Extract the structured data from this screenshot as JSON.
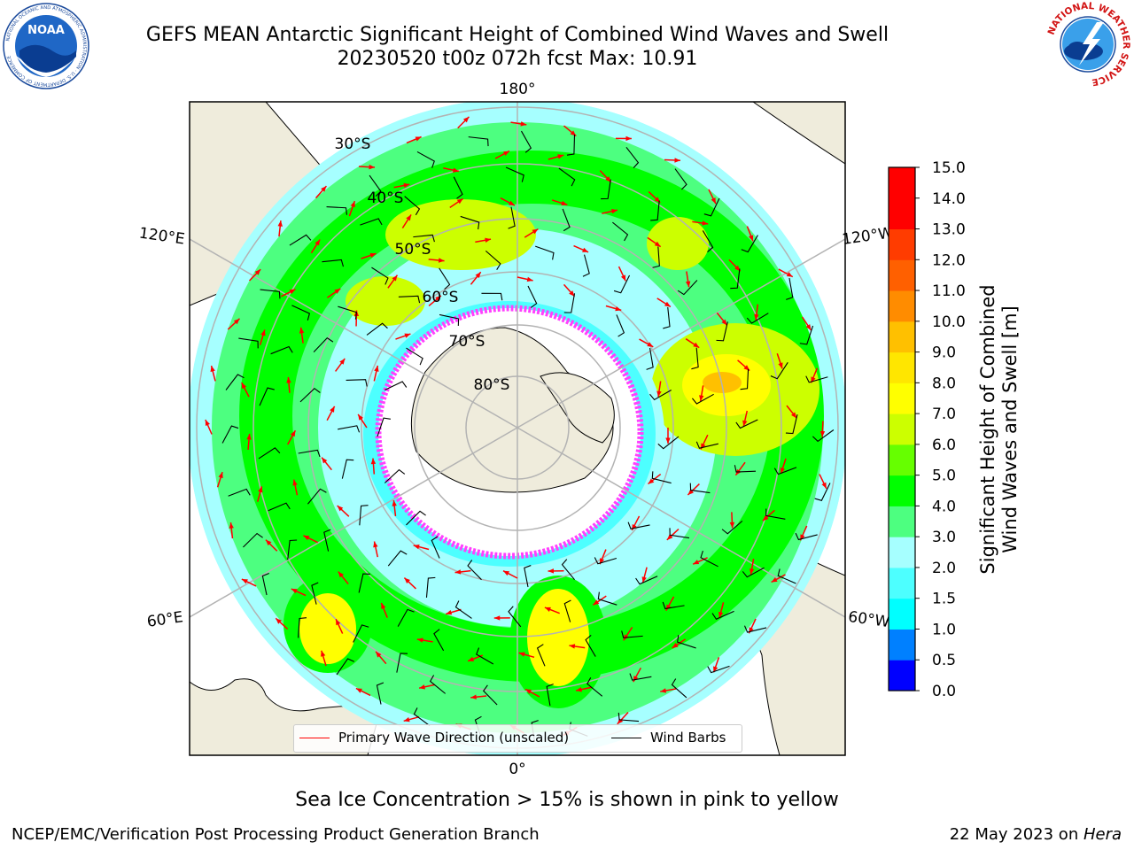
{
  "header": {
    "title_line1": "GEFS MEAN Antarctic Significant Height of Combined Wind Waves and Swell",
    "title_line2": "20230520 t00z 072h fcst   Max: 10.91"
  },
  "logos": {
    "left": {
      "icon": "noaa-logo",
      "text": "NOAA",
      "ring_text": "NATIONAL OCEANIC AND ATMOSPHERIC ADMINISTRATION · U.S. DEPARTMENT OF COMMERCE"
    },
    "right": {
      "icon": "nws-logo",
      "ring_text": "NATIONAL WEATHER SERVICE"
    }
  },
  "map": {
    "projection": "south-polar-stereographic",
    "longitude_labels": [
      "180°",
      "120°E",
      "120°W",
      "60°E",
      "60°W",
      "0°"
    ],
    "latitude_labels": [
      "30°S",
      "40°S",
      "50°S",
      "60°S",
      "70°S",
      "80°S"
    ],
    "colors": {
      "land": "#efecdc",
      "sea_ice": "#ffffff",
      "ice_edge": "#ff40ff",
      "gridlines": "#b3b3b3",
      "wave_arrow": "#ff0000",
      "wind_barb": "#000000"
    }
  },
  "legend": {
    "entries": [
      {
        "label": "Primary Wave Direction (unscaled)",
        "color": "#ff0000"
      },
      {
        "label": "Wind Barbs",
        "color": "#000000"
      }
    ]
  },
  "colorbar": {
    "title_line1": "Significant Height of Combined",
    "title_line2": "Wind Waves and Swell [m]",
    "tick_labels": [
      "0.0",
      "0.5",
      "1.0",
      "1.5",
      "2.0",
      "3.0",
      "4.0",
      "5.0",
      "6.0",
      "7.0",
      "8.0",
      "9.0",
      "10.0",
      "11.0",
      "12.0",
      "13.0",
      "14.0",
      "15.0"
    ],
    "colors": [
      "#0000ff",
      "#0080ff",
      "#00ffff",
      "#4dffff",
      "#a6ffff",
      "#4dff80",
      "#00ff00",
      "#66ff00",
      "#ccff00",
      "#ffff00",
      "#ffe600",
      "#ffc000",
      "#ff8c00",
      "#ff6000",
      "#ff3c00",
      "#ff0000",
      "#ff0000"
    ]
  },
  "footnote": "Sea Ice Concentration > 15% is shown in pink to yellow",
  "footer": {
    "left": "NCEP/EMC/Verification Post Processing Product Generation Branch",
    "right_date": "22 May 2023 on ",
    "right_host": "Hera"
  }
}
